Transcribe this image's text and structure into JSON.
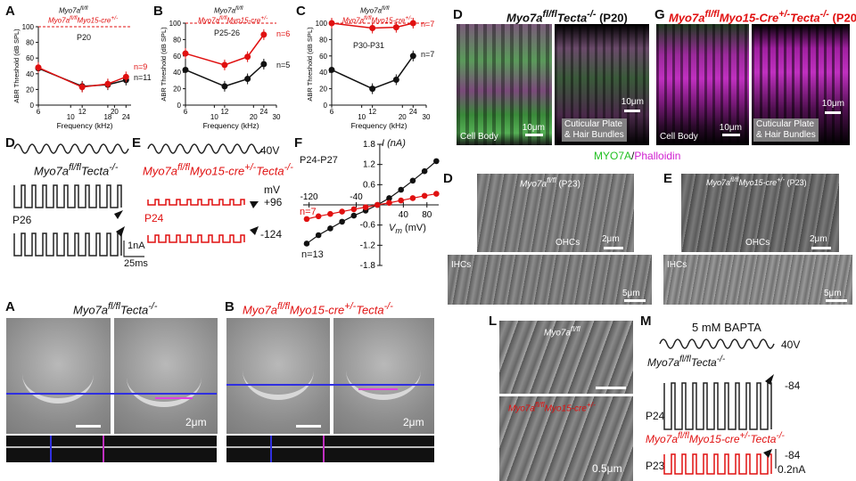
{
  "panels": {
    "A": {
      "letter": "A",
      "title": "Myo7a",
      "title_sup": "fl/fl",
      "red_title": "Myo7a",
      "red_sup": "fl/fl",
      "red_rest": "Myo15-cre",
      "red_rest_sup": "+/-",
      "age": "P20",
      "n_red": "n=9",
      "n_black": "n=11"
    },
    "B": {
      "letter": "B",
      "title": "Myo7a",
      "title_sup": "fl/fl",
      "red_title": "Myo7a",
      "red_sup": "fl/fl",
      "red_rest": "Myo15-cre",
      "red_rest_sup": "+/-",
      "age": "P25-26",
      "n_red": "n=6",
      "n_black": "n=5"
    },
    "C": {
      "letter": "C",
      "title": "Myo7a",
      "title_sup": "fl/fl",
      "red_title": "Myo7a",
      "red_sup": "fl/fl",
      "red_rest": "Myo15-cre",
      "red_rest_sup": "+/-",
      "age": "P30-P31",
      "n_red": "n=7",
      "n_black": "n=7"
    },
    "D_top": {
      "letter": "D",
      "title": "Myo7a",
      "title_sup": "fl/fl",
      "title_rest": "Tecta",
      "title_rest_sup": "-/-",
      "age": "(P20)",
      "cap1": "Cell Body",
      "cap2": "Cuticular Plate",
      "cap3": "& Hair Bundles",
      "scale1": "10μm",
      "scale2": "10μm"
    },
    "G": {
      "letter": "G",
      "title": "Myo7a",
      "title_sup": "fl/fl",
      "title_mid": "Myo15-Cre",
      "title_mid_sup": "+/-",
      "title_rest": "Tecta",
      "title_rest_sup": "-/-",
      "age": "(P20)",
      "cap1": "Cell Body",
      "cap2": "Cuticular Plate",
      "cap3": "& Hair Bundles",
      "scale1": "10μm",
      "scale2": "10μm"
    },
    "legend": {
      "myo": "MYO7A",
      "slash": "/",
      "phal": "Phalloidin"
    },
    "D_trace": {
      "letter": "D",
      "title": "Myo7a",
      "title_sup": "fl/fl",
      "title_rest": "Tecta",
      "title_rest_sup": "-/-",
      "age": "P26"
    },
    "E_trace": {
      "letter": "E",
      "v40": "40V",
      "title": "Myo7a",
      "title_sup": "fl/fl",
      "title_rest": "Myo15-cre",
      "title_rest_sup": "+/-",
      "title_end": "Tecta",
      "title_end_sup": "-/-",
      "mv": "mV",
      "p96": "+96",
      "age": "P24",
      "m124": "-124",
      "scale_i": "1nA",
      "scale_t": "25ms"
    },
    "F": {
      "letter": "F",
      "age": "P24-P27",
      "ylab": "I (nA)",
      "xlab": "V",
      "xsub": "m",
      "xunit": "(mV)",
      "n_red": "n=7",
      "n_black": "n=13"
    },
    "D_sem": {
      "letter": "D",
      "title": "Myo7a",
      "title_sup": "fl/fl",
      "age": "(P23)",
      "ohc": "OHCs",
      "ihc": "IHCs",
      "scale1": "2μm",
      "scale2": "5μm"
    },
    "E_sem": {
      "letter": "E",
      "title": "Myo7a",
      "title_sup": "fl/fl",
      "title_rest": "Myo15-cre",
      "title_rest_sup": "+/-",
      "age": "(P23)",
      "ohc": "OHCs",
      "ihc": "IHCs",
      "scale1": "2μm",
      "scale2": "5μm"
    },
    "A_img": {
      "letter": "A",
      "title": "Myo7a",
      "title_sup": "fl/fl",
      "title_rest": "Tecta",
      "title_rest_sup": "-/-",
      "scale": "2μm"
    },
    "B_img": {
      "letter": "B",
      "title": "Myo7a",
      "title_sup": "fl/fl",
      "title_rest": "Myo15-cre",
      "title_rest_sup": "+/-",
      "title_end": "Tecta",
      "title_end_sup": "-/-",
      "scale": "2μm"
    },
    "L": {
      "letter": "L",
      "top": "Myo7a",
      "top_sup": "fl/fl",
      "bottom": "Myo7a",
      "bottom_sup": "fl/fl",
      "bottom_rest": "Myo15-cre",
      "bottom_rest_sup": "+/-",
      "scale": "0.5μm"
    },
    "M": {
      "letter": "M",
      "bapta": "5 mM BAPTA",
      "v40": "40V",
      "title": "Myo7a",
      "title_sup": "fl/fl",
      "title_rest": "Tecta",
      "title_rest_sup": "-/-",
      "age1": "P24",
      "m84a": "-84",
      "red_title": "Myo7a",
      "red_sup": "fl/fl",
      "red_rest": "Myo15-cre",
      "red_rest_sup": "+/-",
      "red_end": "Tecta",
      "red_end_sup": "-/-",
      "age2": "P23",
      "m84b": "-84",
      "scale": "0.2nA"
    }
  },
  "chart_data": [
    {
      "type": "line",
      "panel": "A",
      "xlabel": "Frequency (kHz)",
      "ylabel": "ABR Threshold (dB SPL)",
      "x_ticks": [
        6,
        10,
        12,
        18,
        20,
        24
      ],
      "y_ticks": [
        0,
        20,
        40,
        60,
        80,
        100
      ],
      "ylim": [
        0,
        100
      ],
      "series": [
        {
          "name": "Myo7a fl/fl",
          "color": "#111111",
          "x": [
            6,
            12,
            18,
            24
          ],
          "y": [
            47,
            24,
            26,
            32
          ]
        },
        {
          "name": "Myo7a fl/fl Myo15-cre+/-",
          "color": "#e01010",
          "x": [
            6,
            12,
            18,
            24
          ],
          "y": [
            48,
            23,
            27,
            36
          ]
        }
      ]
    },
    {
      "type": "line",
      "panel": "B",
      "xlabel": "Frequency (kHz)",
      "ylabel": "ABR Threshold (dB SPL)",
      "x_ticks": [
        6,
        10,
        12,
        20,
        24,
        30
      ],
      "y_ticks": [
        0,
        20,
        40,
        60,
        80,
        100
      ],
      "ylim": [
        0,
        100
      ],
      "series": [
        {
          "name": "Myo7a fl/fl",
          "color": "#111111",
          "x": [
            6,
            12,
            18,
            24
          ],
          "y": [
            43,
            23,
            32,
            50
          ]
        },
        {
          "name": "Myo7a fl/fl Myo15-cre+/-",
          "color": "#e01010",
          "x": [
            6,
            12,
            18,
            24
          ],
          "y": [
            63,
            49,
            59,
            86
          ]
        }
      ]
    },
    {
      "type": "line",
      "panel": "C",
      "xlabel": "Frequency (kHz)",
      "ylabel": "ABR Threshold (dB SPL)",
      "x_ticks": [
        6,
        10,
        12,
        20,
        24,
        30
      ],
      "y_ticks": [
        0,
        20,
        40,
        60,
        80,
        100
      ],
      "ylim": [
        0,
        100
      ],
      "series": [
        {
          "name": "Myo7a fl/fl",
          "color": "#111111",
          "x": [
            6,
            12,
            18,
            24
          ],
          "y": [
            43,
            20,
            31,
            60
          ]
        },
        {
          "name": "Myo7a fl/fl Myo15-cre+/-",
          "color": "#e01010",
          "x": [
            6,
            12,
            18,
            24
          ],
          "y": [
            100,
            94,
            95,
            100
          ]
        }
      ]
    },
    {
      "type": "line",
      "panel": "F",
      "xlabel": "Vm (mV)",
      "ylabel": "I (nA)",
      "x_ticks": [
        -120,
        -40,
        40,
        80
      ],
      "y_ticks": [
        1.8,
        1.2,
        0.6,
        -0.6,
        -1.2,
        -1.8
      ],
      "xlim": [
        -130,
        100
      ],
      "ylim": [
        -1.8,
        1.8
      ],
      "series": [
        {
          "name": "Myo7a fl/fl",
          "color": "#111111",
          "x": [
            -124,
            -104,
            -84,
            -64,
            -44,
            -24,
            -4,
            16,
            36,
            56,
            76,
            96
          ],
          "y": [
            -1.15,
            -0.9,
            -0.7,
            -0.5,
            -0.32,
            -0.17,
            0.0,
            0.2,
            0.45,
            0.72,
            1.0,
            1.3
          ]
        },
        {
          "name": "Myo7a fl/fl Myo15-cre+/-",
          "color": "#e01010",
          "x": [
            -124,
            -104,
            -84,
            -64,
            -44,
            -24,
            -4,
            16,
            36,
            56,
            76,
            96
          ],
          "y": [
            -0.42,
            -0.34,
            -0.27,
            -0.2,
            -0.13,
            -0.07,
            0.0,
            0.06,
            0.13,
            0.2,
            0.27,
            0.33
          ]
        }
      ]
    }
  ]
}
